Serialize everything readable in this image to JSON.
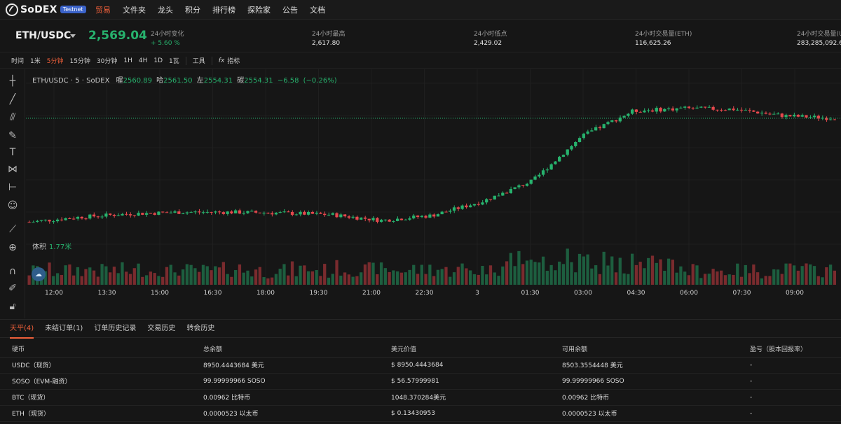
{
  "nav": {
    "logo": "SoDEX",
    "badge": "Testnet",
    "items": [
      "贸易",
      "文件夹",
      "龙头",
      "积分",
      "排行榜",
      "探险家",
      "公告",
      "文档"
    ],
    "active_index": 0
  },
  "ticker": {
    "pair": "ETH/USDC",
    "price": "2,569.04",
    "stats": [
      {
        "label": "24小时变化",
        "value": "+ 5.60 %"
      },
      {
        "label": "24小时最高",
        "value": "2,617.80"
      },
      {
        "label": "24小时低点",
        "value": "2,429.02"
      },
      {
        "label": "24小时交易量(ETH)",
        "value": "116,625.26"
      },
      {
        "label": "24小时交易量(US",
        "value": "283,285,092.69"
      }
    ]
  },
  "toolbar": {
    "items": [
      "时间",
      "1米",
      "5分钟",
      "15分钟",
      "30分钟",
      "1H",
      "4H",
      "1D",
      "1瓦"
    ],
    "active_index": 2,
    "tools": "工具",
    "indicators": "指标",
    "indicator_icon": "fx"
  },
  "left_tools": [
    "crosshair-icon",
    "trendline-icon",
    "fib-icon",
    "brush-icon",
    "text-icon",
    "pattern-icon",
    "measure-icon",
    "emoji-icon",
    "ruler-icon",
    "zoom-in-icon",
    "magnet-icon",
    "lock-drawing-icon",
    "lock-icon"
  ],
  "legend": {
    "title": "ETH/USDC · 5 · SoDEX",
    "o_label": "喔",
    "o": "2560.89",
    "h_label": "哈",
    "h": "2561.50",
    "l_label": "左",
    "l": "2554.31",
    "c_label": "碳",
    "c": "2554.31",
    "change": "−6.58",
    "change_pct": "(−0.26%)"
  },
  "volume": {
    "label": "体积",
    "value": "1.77米"
  },
  "chart_data": {
    "type": "candlestick",
    "x_ticks": [
      "12:00",
      "13:30",
      "15:00",
      "16:30",
      "18:00",
      "19:30",
      "21:00",
      "22:30",
      "3",
      "01:30",
      "03:00",
      "04:30",
      "06:00",
      "07:30",
      "09:00",
      "10:3"
    ],
    "close_anchors": [
      2440,
      2446,
      2450,
      2452,
      2452,
      2451,
      2449,
      2442,
      2448,
      2465,
      2490,
      2545,
      2575,
      2578,
      2577,
      2569,
      2566
    ],
    "colors": {
      "up": "#27b26d",
      "down": "#e5484d"
    }
  },
  "tabs": [
    "天平(4)",
    "未结订单(1)",
    "订单历史记录",
    "交易历史",
    "转会历史"
  ],
  "tabs_active": 0,
  "balances": {
    "headers": [
      "硬币",
      "总余额",
      "美元价值",
      "可用余额",
      "盈亏（股本回报率）"
    ],
    "rows": [
      [
        "USDC（现货）",
        "8950.4443684 美元",
        "$ 8950.4443684",
        "8503.3554448 美元",
        "-"
      ],
      [
        "SOSO（EVM-融资）",
        "99.99999966 SOSO",
        "$ 56.57999981",
        "99.99999966 SOSO",
        "-"
      ],
      [
        "BTC（现货）",
        "0.00962 比特币",
        "1048.370284美元",
        "0.00962 比特币",
        "-"
      ],
      [
        "ETH（现货）",
        "0.0000523 以太币",
        "$ 0.13430953",
        "0.0000523 以太币",
        "-"
      ]
    ]
  }
}
